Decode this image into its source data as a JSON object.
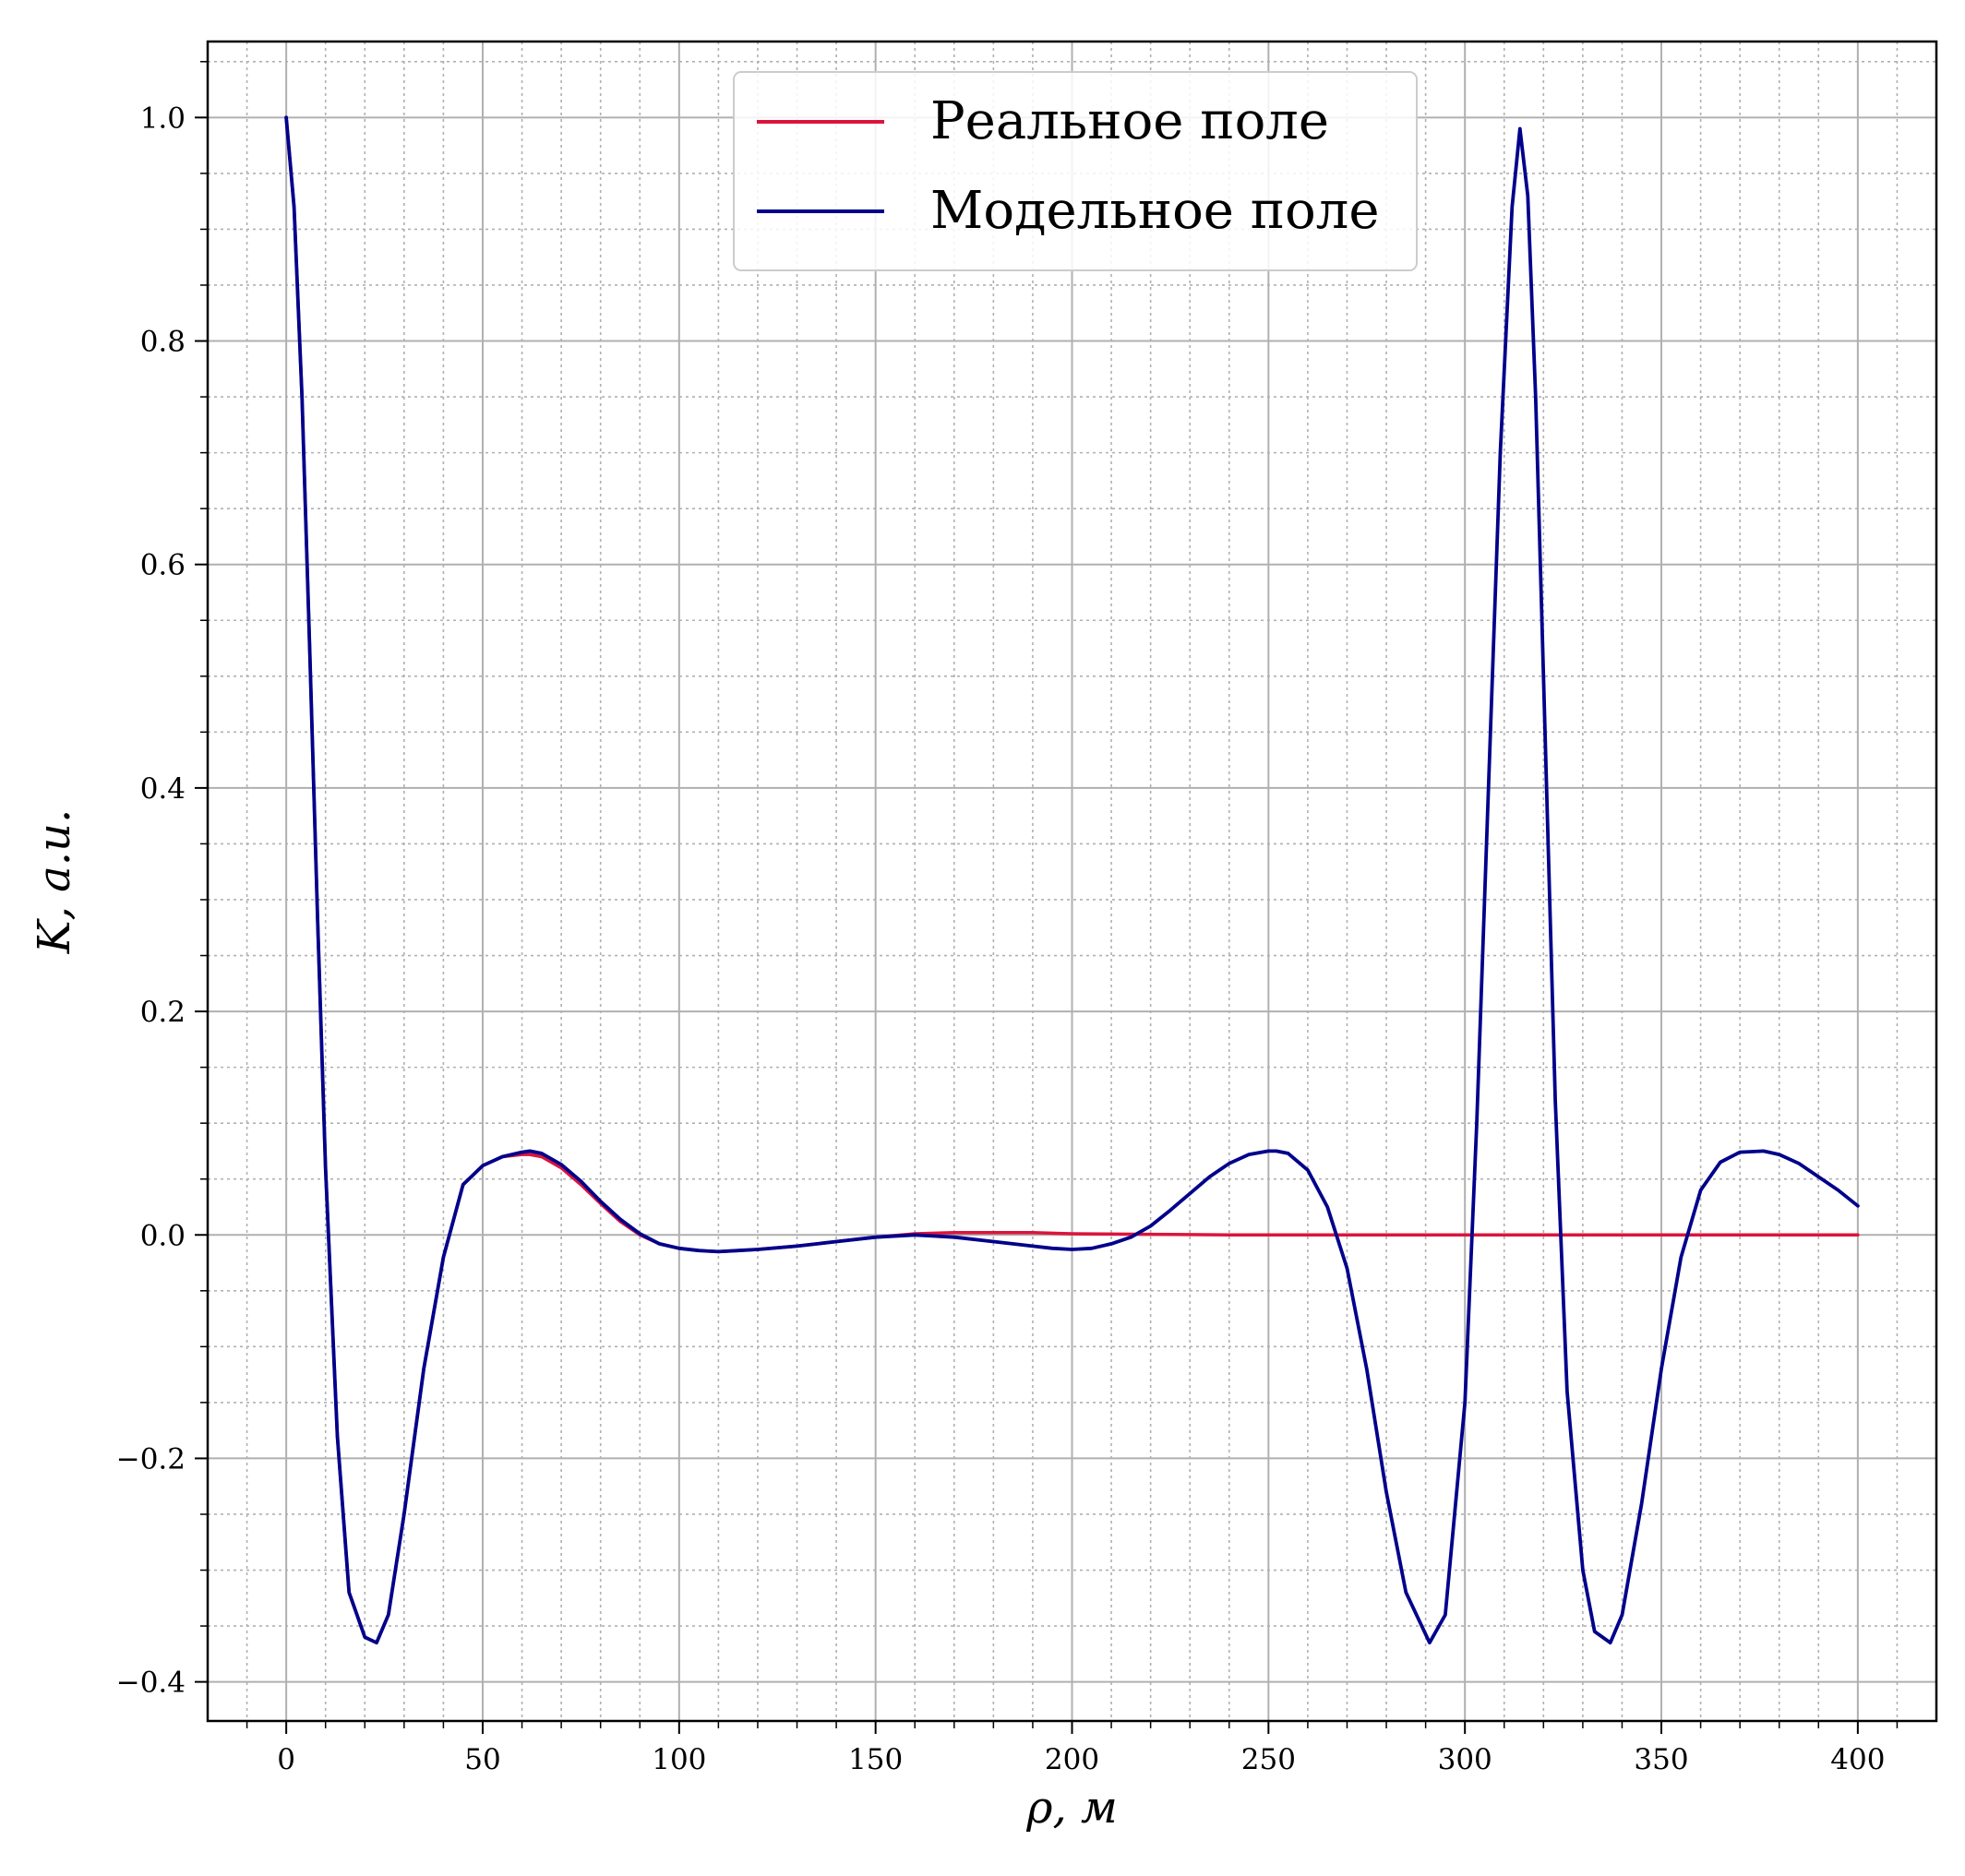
{
  "chart_data": {
    "type": "line",
    "xlabel": "ρ, м",
    "ylabel": "K, a.u.",
    "xlim": [
      -20,
      420
    ],
    "ylim": [
      -0.435,
      1.068
    ],
    "x_ticks": [
      0,
      50,
      100,
      150,
      200,
      250,
      300,
      350,
      400
    ],
    "x_tick_labels": [
      "0",
      "50",
      "100",
      "150",
      "200",
      "250",
      "300",
      "350",
      "400"
    ],
    "y_ticks": [
      -0.4,
      -0.2,
      0.0,
      0.2,
      0.4,
      0.6,
      0.8,
      1.0
    ],
    "y_tick_labels": [
      "−0.4",
      "−0.2",
      "0.0",
      "0.2",
      "0.4",
      "0.6",
      "0.8",
      "1.0"
    ],
    "grid": {
      "major": true,
      "minor": true
    },
    "legend_position": "top-center",
    "series": [
      {
        "name": "Реальное поле",
        "color": "#dc143c",
        "x": [
          0,
          2,
          4,
          6,
          8,
          10,
          13,
          16,
          20,
          23,
          26,
          30,
          35,
          40,
          45,
          50,
          55,
          60,
          62,
          65,
          70,
          75,
          80,
          85,
          90,
          95,
          100,
          105,
          110,
          115,
          120,
          130,
          140,
          150,
          160,
          170,
          180,
          190,
          200,
          220,
          240,
          260,
          280,
          300,
          320,
          340,
          360,
          380,
          400
        ],
        "y": [
          1.0,
          0.92,
          0.75,
          0.52,
          0.28,
          0.06,
          -0.18,
          -0.32,
          -0.36,
          -0.365,
          -0.34,
          -0.25,
          -0.12,
          -0.02,
          0.045,
          0.062,
          0.07,
          0.072,
          0.072,
          0.07,
          0.06,
          0.045,
          0.028,
          0.012,
          0.0,
          -0.008,
          -0.012,
          -0.014,
          -0.015,
          -0.014,
          -0.013,
          -0.01,
          -0.006,
          -0.002,
          0.001,
          0.002,
          0.002,
          0.002,
          0.001,
          0.0005,
          0.0,
          0.0,
          0.0,
          0.0,
          0.0,
          0.0,
          0.0,
          0.0,
          0.0
        ]
      },
      {
        "name": "Модельное поле",
        "color": "#00008b",
        "x": [
          0,
          2,
          4,
          6,
          8,
          10,
          13,
          16,
          20,
          23,
          26,
          30,
          35,
          40,
          45,
          50,
          55,
          60,
          62,
          65,
          70,
          75,
          80,
          85,
          90,
          95,
          100,
          105,
          110,
          115,
          120,
          130,
          140,
          150,
          160,
          170,
          180,
          190,
          195,
          200,
          205,
          210,
          215,
          220,
          225,
          230,
          235,
          240,
          245,
          250,
          252,
          255,
          260,
          265,
          270,
          275,
          280,
          285,
          291,
          295,
          300,
          303,
          306,
          309,
          312,
          314,
          316,
          318,
          320,
          323,
          326,
          330,
          333,
          337,
          340,
          345,
          350,
          355,
          360,
          365,
          370,
          376,
          380,
          385,
          390,
          395,
          400
        ],
        "y": [
          1.0,
          0.92,
          0.75,
          0.52,
          0.28,
          0.06,
          -0.18,
          -0.32,
          -0.36,
          -0.365,
          -0.34,
          -0.25,
          -0.12,
          -0.02,
          0.045,
          0.062,
          0.07,
          0.074,
          0.075,
          0.073,
          0.063,
          0.048,
          0.03,
          0.014,
          0.001,
          -0.008,
          -0.012,
          -0.014,
          -0.015,
          -0.014,
          -0.013,
          -0.01,
          -0.006,
          -0.002,
          0.0,
          -0.002,
          -0.006,
          -0.01,
          -0.012,
          -0.013,
          -0.012,
          -0.008,
          -0.002,
          0.008,
          0.022,
          0.037,
          0.052,
          0.064,
          0.072,
          0.075,
          0.075,
          0.073,
          0.058,
          0.025,
          -0.03,
          -0.12,
          -0.23,
          -0.32,
          -0.365,
          -0.34,
          -0.15,
          0.1,
          0.4,
          0.7,
          0.92,
          0.99,
          0.93,
          0.75,
          0.5,
          0.12,
          -0.14,
          -0.3,
          -0.355,
          -0.365,
          -0.34,
          -0.24,
          -0.12,
          -0.02,
          0.04,
          0.065,
          0.074,
          0.075,
          0.072,
          0.064,
          0.052,
          0.04,
          0.026
        ]
      }
    ]
  }
}
